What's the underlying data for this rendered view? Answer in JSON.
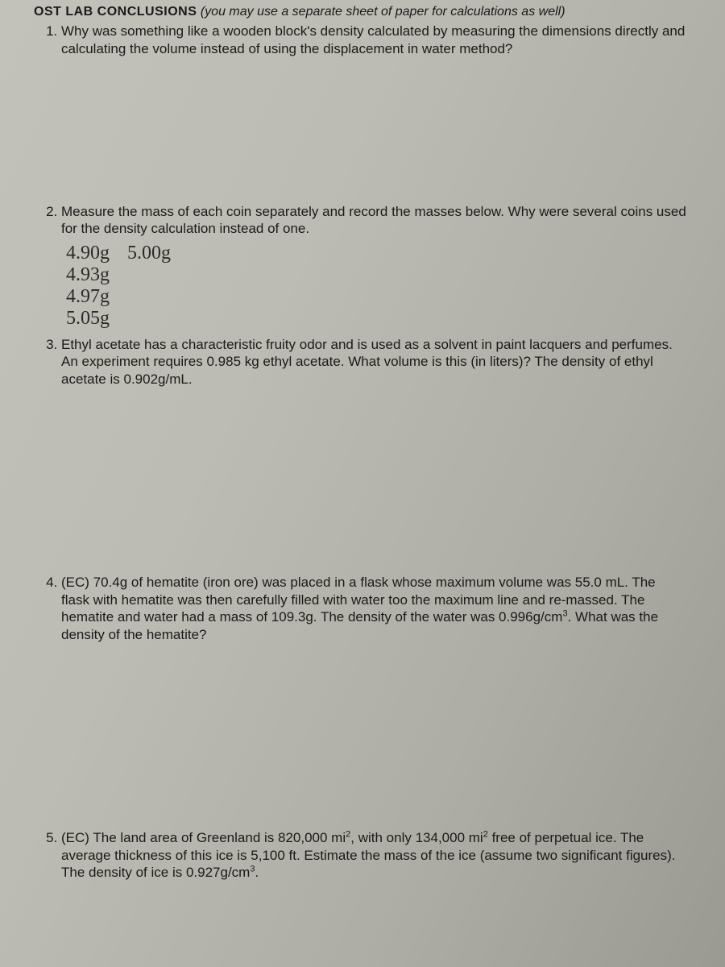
{
  "heading": {
    "bold": "OST LAB CONCLUSIONS",
    "italic": "(you may use a separate sheet of paper for calculations as well)"
  },
  "questions": {
    "q1": "Why was something like a wooden block's density calculated by measuring the dimensions directly and calculating the volume instead of using the displacement in water method?",
    "q2": "Measure the mass of each coin separately and record the masses below. Why were several coins used for the density calculation instead of one.",
    "q3_a": "Ethyl acetate has a characteristic fruity odor and is used as a solvent in paint lacquers and perfumes. An experiment requires 0.985 kg ethyl acetate. What volume is this (in liters)? The density of ethyl acetate is 0.902g/mL.",
    "q4_a": "(EC) 70.4g of hematite (iron ore) was placed in a flask whose maximum volume was 55.0 mL. The flask with hematite was then carefully filled with water too the maximum line and re-massed. The hematite and water had a mass of 109.3g. The density of the water was 0.996g/cm",
    "q4_b": ". What was the density of the hematite?",
    "q5_a": "(EC) The land area of Greenland is 820,000 mi",
    "q5_b": ", with only 134,000 mi",
    "q5_c": " free of perpetual ice. The average thickness of this ice is 5,100 ft. Estimate the mass of the ice (assume two significant figures). The density of ice is 0.927g/cm",
    "q5_d": "."
  },
  "handwriting": {
    "m1": "4.90g",
    "m1b": "5.00g",
    "m2": "4.93g",
    "m3": "4.97g",
    "m4": "5.05g"
  },
  "sup": {
    "two": "2",
    "three": "3"
  }
}
